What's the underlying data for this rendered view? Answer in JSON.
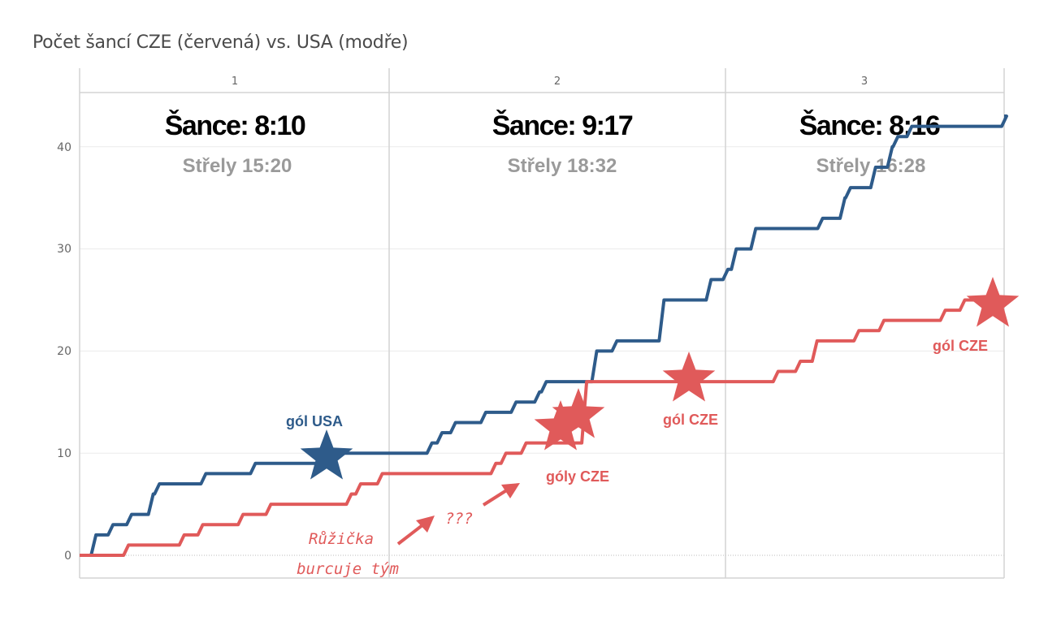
{
  "title": "Počet šancí CZE (červená) vs. USA (modře)",
  "colors": {
    "usa": "#2e5b8a",
    "cze": "#e05a5a"
  },
  "chart_data": {
    "type": "line",
    "subtype": "step",
    "title": "Počet šancí CZE (červená) vs. USA (modře)",
    "xlabel": "",
    "ylabel": "",
    "ylim": [
      0,
      45
    ],
    "yticks": [
      "0",
      "10",
      "20",
      "30",
      "40"
    ],
    "grid": true,
    "x_units": "fraction of game (0-3 periods)",
    "periods": [
      {
        "label": "1",
        "sance": "Šance: 8:10",
        "strely": "Střely 15:20"
      },
      {
        "label": "2",
        "sance": "Šance: 9:17",
        "strely": "Střely 18:32"
      },
      {
        "label": "3",
        "sance": "Šance: 8:16",
        "strely": "Střely 16:28"
      }
    ],
    "series": [
      {
        "name": "USA",
        "color": "#2e5b8a",
        "points": [
          [
            0.0,
            0
          ],
          [
            0.045,
            2
          ],
          [
            0.1,
            3
          ],
          [
            0.16,
            4
          ],
          [
            0.23,
            6
          ],
          [
            0.25,
            7
          ],
          [
            0.4,
            8
          ],
          [
            0.56,
            9
          ],
          [
            0.79,
            10
          ],
          [
            1.12,
            11
          ],
          [
            1.15,
            12
          ],
          [
            1.19,
            13
          ],
          [
            1.28,
            14
          ],
          [
            1.37,
            15
          ],
          [
            1.44,
            16
          ],
          [
            1.46,
            17
          ],
          [
            1.61,
            20
          ],
          [
            1.67,
            21
          ],
          [
            1.81,
            25
          ],
          [
            1.95,
            27
          ],
          [
            2.0,
            28
          ],
          [
            2.03,
            30
          ],
          [
            2.1,
            32
          ],
          [
            2.34,
            33
          ],
          [
            2.42,
            35
          ],
          [
            2.44,
            36
          ],
          [
            2.53,
            38
          ],
          [
            2.59,
            40
          ],
          [
            2.61,
            41
          ],
          [
            2.66,
            42
          ],
          [
            3.0,
            43
          ]
        ]
      },
      {
        "name": "CZE",
        "color": "#e05a5a",
        "points": [
          [
            0.0,
            0
          ],
          [
            0.15,
            1
          ],
          [
            0.33,
            2
          ],
          [
            0.39,
            3
          ],
          [
            0.52,
            4
          ],
          [
            0.61,
            5
          ],
          [
            0.87,
            6
          ],
          [
            0.9,
            7
          ],
          [
            0.97,
            8
          ],
          [
            1.31,
            9
          ],
          [
            1.34,
            10
          ],
          [
            1.4,
            11
          ],
          [
            1.58,
            17
          ],
          [
            2.18,
            18
          ],
          [
            2.26,
            19
          ],
          [
            2.32,
            21
          ],
          [
            2.47,
            22
          ],
          [
            2.56,
            23
          ],
          [
            2.78,
            24
          ],
          [
            2.85,
            25
          ],
          [
            3.0,
            25
          ]
        ]
      }
    ],
    "annotations": [
      {
        "text": "gól USA",
        "team": "USA",
        "x": 0.8,
        "y": 10,
        "marker": "star"
      },
      {
        "text": "góly CZE",
        "team": "CZE",
        "x": 1.55,
        "y": 12,
        "marker": "double-star"
      },
      {
        "text": "gól CZE",
        "team": "CZE",
        "x": 1.91,
        "y": 17,
        "marker": "star"
      },
      {
        "text": "gól CZE",
        "team": "CZE",
        "x": 2.89,
        "y": 25,
        "marker": "star"
      },
      {
        "text": "???",
        "team": "CZE",
        "marker": "none"
      },
      {
        "text": "Růžička",
        "team": "CZE",
        "marker": "none"
      },
      {
        "text": "burcuje tým",
        "team": "CZE",
        "marker": "none"
      }
    ]
  }
}
